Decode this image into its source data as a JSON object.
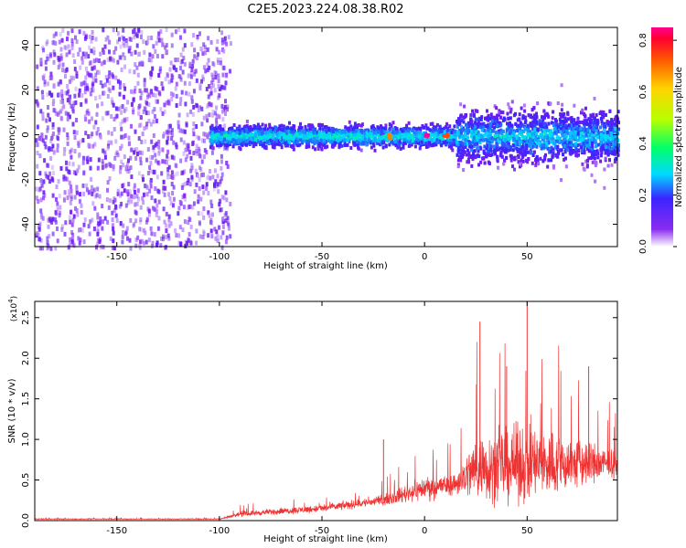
{
  "title": "C2E5.2023.224.08.38.R02",
  "chart_data": [
    {
      "type": "heatmap",
      "xlabel": "Height of straight line (km)",
      "ylabel": "Frequency (Hz)",
      "xlim": [
        -190,
        94
      ],
      "ylim": [
        -50,
        48
      ],
      "xticks": [
        -150,
        -100,
        -50,
        0,
        50
      ],
      "yticks": [
        -40,
        -20,
        0,
        20,
        40
      ],
      "colorbar": {
        "label": "Normalized spectral amplitude",
        "range": [
          0,
          0.85
        ],
        "ticks": [
          0.0,
          0.2,
          0.4,
          0.6,
          0.8
        ],
        "colormap": [
          "#ffffff",
          "#7a1cf0",
          "#3a24ff",
          "#00d9ff",
          "#00ff6a",
          "#b7ff00",
          "#ffd400",
          "#ff6a00",
          "#ff0000",
          "#ff00a0"
        ]
      },
      "regions": [
        {
          "x": [
            -190,
            -100
          ],
          "description_level": "diffuse noise",
          "amplitude": 0.02
        },
        {
          "x": [
            -105,
            15
          ],
          "center_freq": 0,
          "band_halfwidth": 8,
          "amplitude": 0.3
        },
        {
          "x": [
            15,
            94
          ],
          "center_freq": 0,
          "band_halfwidth": 20,
          "amplitude": 0.3
        }
      ],
      "peaks": [
        {
          "x": 0,
          "freq": 0,
          "amplitude": 0.85
        },
        {
          "x": 10,
          "freq": 0,
          "amplitude": 0.75
        },
        {
          "x": -18,
          "freq": 0,
          "amplitude": 0.7
        }
      ]
    },
    {
      "type": "line",
      "xlabel": "Height of straight line (km)",
      "ylabel": "SNR (10 * v/v)",
      "y_multiplier": "(x10",
      "y_multiplier_exp": "4",
      "y_multiplier_close": ")",
      "xlim": [
        -190,
        94
      ],
      "ylim": [
        0,
        2.7
      ],
      "xticks": [
        -150,
        -100,
        -50,
        0,
        50
      ],
      "yticks": [
        0.0,
        0.5,
        1.0,
        1.5,
        2.0,
        2.5
      ],
      "color": "#ee3333",
      "envelope": [
        {
          "x": -190,
          "mean": 0.02,
          "max": 0.04
        },
        {
          "x": -100,
          "mean": 0.02,
          "max": 0.04
        },
        {
          "x": -90,
          "mean": 0.08,
          "max": 0.2
        },
        {
          "x": -50,
          "mean": 0.15,
          "max": 0.35
        },
        {
          "x": -20,
          "mean": 0.25,
          "max": 0.5
        },
        {
          "x": 0,
          "mean": 0.4,
          "max": 1.0
        },
        {
          "x": 15,
          "mean": 0.45,
          "max": 1.0
        },
        {
          "x": 25,
          "mean": 0.65,
          "max": 2.3
        },
        {
          "x": 50,
          "mean": 0.7,
          "max": 2.7
        },
        {
          "x": 80,
          "mean": 0.7,
          "max": 1.9
        },
        {
          "x": 94,
          "mean": 0.7,
          "max": 1.3
        }
      ],
      "peaks": [
        {
          "x": 27,
          "y": 2.45
        },
        {
          "x": 50,
          "y": 2.7
        },
        {
          "x": 40,
          "y": 1.9
        },
        {
          "x": 80,
          "y": 1.9
        },
        {
          "x": -20,
          "y": 1.0
        }
      ]
    }
  ]
}
